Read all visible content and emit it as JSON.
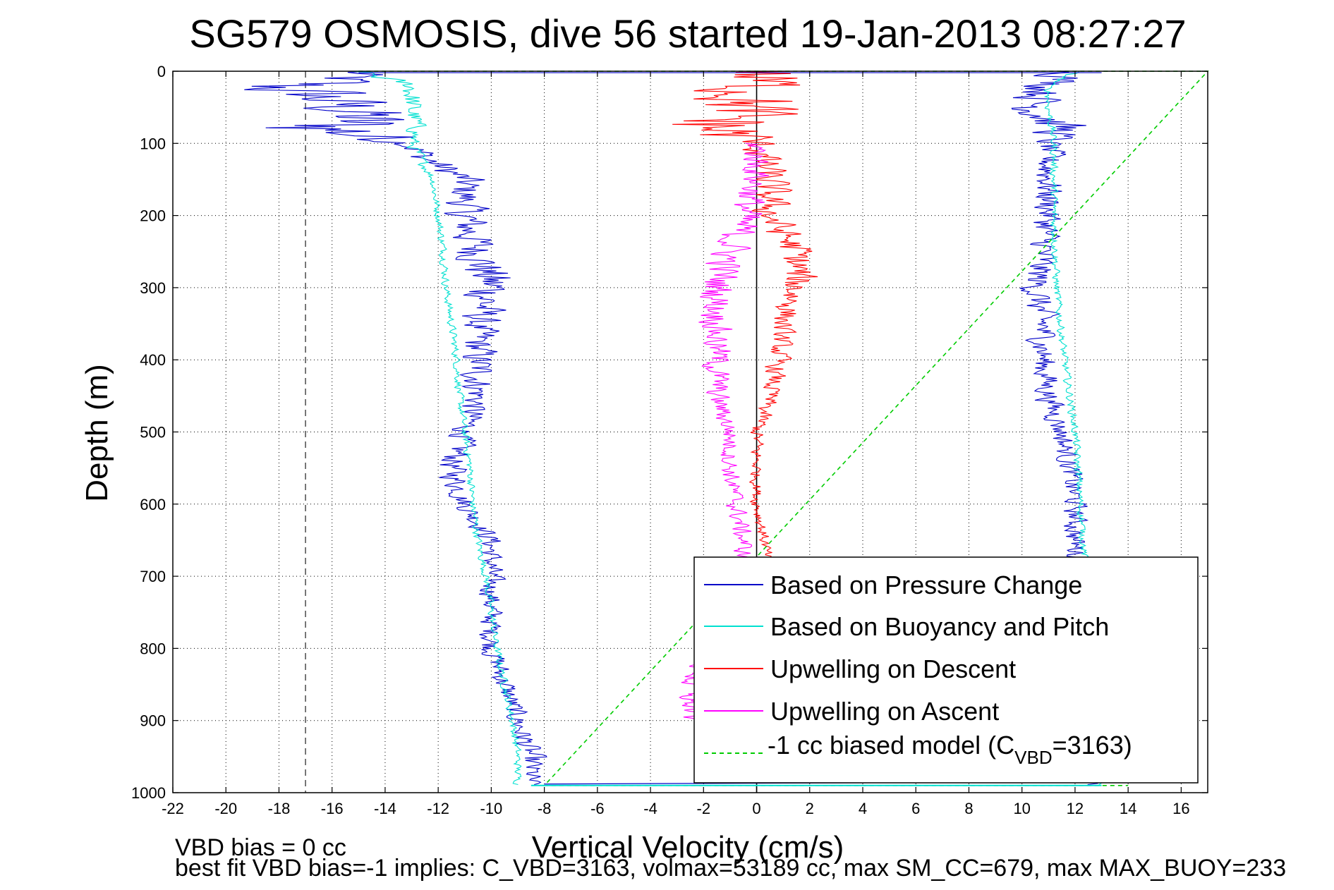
{
  "chart_data": {
    "type": "line",
    "title": "SG579 OSMOSIS, dive 56 started 19-Jan-2013 08:27:27",
    "xlabel": "Vertical Velocity (cm/s)",
    "ylabel": "Depth (m)",
    "xlim": [
      -22,
      17
    ],
    "ylim": [
      1000,
      0
    ],
    "y_reversed": true,
    "grid": true,
    "x_ticks": [
      "-22",
      "-20",
      "-18",
      "-16",
      "-14",
      "-12",
      "-10",
      "-8",
      "-6",
      "-4",
      "-2",
      "0",
      "2",
      "4",
      "6",
      "8",
      "10",
      "12",
      "14",
      "16"
    ],
    "y_ticks": [
      "0",
      "100",
      "200",
      "300",
      "400",
      "500",
      "600",
      "700",
      "800",
      "900",
      "1000"
    ],
    "legend_position": "bottom-right",
    "legend": {
      "pressure": "Based on Pressure Change",
      "buoyancy": "Based on Buoyancy and Pitch",
      "descent": "Upwelling on Descent",
      "ascent": "Upwelling on Ascent",
      "biased_prefix": "-1 cc biased model (C",
      "biased_sub": "VBD",
      "biased_suffix": "=3163)"
    },
    "annotations": {
      "vbd_bias": "VBD bias = 0 cc",
      "best_fit": "best fit VBD bias=-1 implies: C_VBD=3163, volmax=53189 cc, max SM_CC=679, max MAX_BUOY=233"
    },
    "reference_lines": [
      {
        "x": -17,
        "style": "dashed",
        "color": "#555555"
      },
      {
        "x": 0,
        "style": "solid",
        "color": "#000000"
      }
    ],
    "series": [
      {
        "key": "press_desc",
        "legend_key": "pressure",
        "color": "#0000c8",
        "depth": [
          0,
          15,
          20,
          40,
          60,
          80,
          100,
          120,
          150,
          175,
          200,
          250,
          300,
          350,
          400,
          450,
          500,
          550,
          600,
          650,
          700,
          750,
          800,
          850,
          900,
          950,
          990
        ],
        "velocity": [
          -15,
          -16,
          -18,
          -16,
          -15,
          -16,
          -13,
          -12.5,
          -11,
          -11,
          -11,
          -10.5,
          -10,
          -10.5,
          -10.5,
          -10.5,
          -11,
          -11.5,
          -11,
          -10,
          -10,
          -10,
          -10,
          -9.5,
          -9,
          -8.5,
          -8.5
        ],
        "amplitude": [
          1.5,
          2.5,
          4,
          3,
          3,
          5,
          1,
          1,
          1,
          1,
          1.2,
          1.2,
          1.5,
          1,
          1,
          0.8,
          0.7,
          0.8,
          0.6,
          0.6,
          0.6,
          0.6,
          0.6,
          0.6,
          0.6,
          0.7,
          0.5
        ]
      },
      {
        "key": "buoy_desc",
        "legend_key": "buoyancy",
        "color": "#00e0d0",
        "depth": [
          0,
          20,
          50,
          80,
          100,
          150,
          200,
          250,
          300,
          350,
          400,
          450,
          500,
          550,
          600,
          650,
          700,
          750,
          800,
          850,
          900,
          950,
          990
        ],
        "velocity": [
          -15,
          -13,
          -13,
          -12.8,
          -13,
          -12.2,
          -12,
          -11.8,
          -11.7,
          -11.5,
          -11.3,
          -11.2,
          -11,
          -10.8,
          -10.7,
          -10.5,
          -10.2,
          -10,
          -9.8,
          -9.5,
          -9.2,
          -9,
          -9
        ],
        "amplitude": [
          0.8,
          0.6,
          0.6,
          0.5,
          0.4,
          0.2,
          0.2,
          0.2,
          0.2,
          0.2,
          0.2,
          0.2,
          0.2,
          0.2,
          0.2,
          0.2,
          0.2,
          0.2,
          0.2,
          0.2,
          0.2,
          0.2,
          0.2
        ]
      },
      {
        "key": "press_asc",
        "legend_key": "pressure",
        "color": "#0000c8",
        "depth": [
          0,
          20,
          50,
          80,
          100,
          150,
          200,
          250,
          300,
          350,
          400,
          450,
          500,
          550,
          600,
          650,
          700,
          750,
          800,
          850,
          900,
          950,
          990
        ],
        "velocity": [
          12,
          11,
          10.5,
          11.5,
          11,
          11,
          11,
          10.8,
          10.5,
          10.8,
          10.8,
          11,
          11.5,
          11.8,
          12,
          12,
          12.2,
          12.3,
          12.5,
          12.8,
          13,
          13,
          12.5
        ],
        "amplitude": [
          1.5,
          1.2,
          1.5,
          1.5,
          0.8,
          0.8,
          0.8,
          0.8,
          0.8,
          0.8,
          0.7,
          0.7,
          0.6,
          0.6,
          0.6,
          0.6,
          0.5,
          0.5,
          0.5,
          0.5,
          0.5,
          0.5,
          0.5
        ]
      },
      {
        "key": "buoy_asc",
        "legend_key": "buoyancy",
        "color": "#00e0d0",
        "depth": [
          0,
          20,
          50,
          100,
          200,
          300,
          400,
          500,
          600,
          700,
          800,
          900,
          990
        ],
        "velocity": [
          12,
          11,
          11,
          11.2,
          11.2,
          11.3,
          11.6,
          12,
          12.2,
          12.4,
          12.6,
          12.8,
          13
        ],
        "amplitude": [
          0.3,
          0.2,
          0.2,
          0.2,
          0.2,
          0.2,
          0.2,
          0.2,
          0.2,
          0.2,
          0.2,
          0.2,
          0.2
        ]
      },
      {
        "key": "upw_desc",
        "legend_key": "descent",
        "color": "#ff0000",
        "depth": [
          0,
          20,
          50,
          80,
          100,
          150,
          200,
          250,
          300,
          350,
          400,
          450,
          500,
          550,
          600,
          650,
          700
        ],
        "velocity": [
          0,
          0,
          -0.5,
          -1.5,
          0,
          0.5,
          0.5,
          1.5,
          1.5,
          1,
          0.8,
          0.5,
          0,
          0,
          0,
          0.3,
          0.5
        ],
        "amplitude": [
          3,
          3,
          3,
          4,
          1,
          1,
          1,
          1,
          1,
          0.6,
          0.6,
          0.5,
          0.4,
          0.3,
          0.3,
          0.3,
          0.3
        ]
      },
      {
        "key": "upw_asc",
        "legend_key": "ascent",
        "color": "#ff00ff",
        "depth": [
          100,
          150,
          200,
          250,
          300,
          350,
          400,
          450,
          500,
          550,
          600,
          650,
          700,
          750,
          800,
          850,
          900
        ],
        "velocity": [
          0,
          0,
          -0.5,
          -1,
          -1.5,
          -1.5,
          -1.5,
          -1.5,
          -1,
          -1,
          -0.8,
          -0.5,
          -0.5,
          -1,
          -1.5,
          -2.5,
          -2.5
        ],
        "amplitude": [
          0.8,
          0.8,
          1,
          1,
          1,
          0.8,
          0.8,
          0.6,
          0.5,
          0.5,
          0.5,
          0.5,
          0.5,
          0.5,
          0.8,
          0.8,
          0.6
        ]
      },
      {
        "key": "biased_model",
        "legend_key": "biased",
        "color": "#00cc00",
        "dashed": true,
        "depth": [
          0,
          0,
          990,
          990
        ],
        "velocity": [
          -15,
          17,
          -8,
          14
        ],
        "amplitude": [
          0,
          0,
          0,
          0
        ]
      }
    ]
  }
}
